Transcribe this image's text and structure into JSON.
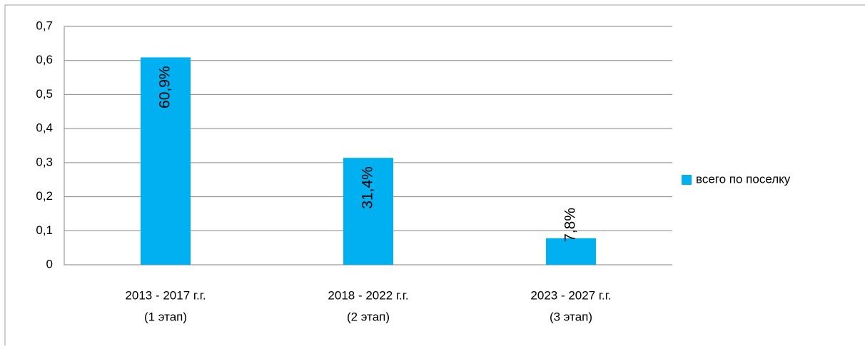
{
  "chart_data": {
    "type": "bar",
    "categories": [
      [
        "2013 - 2017 г.г.",
        "(1 этап)"
      ],
      [
        "2018 - 2022 г.г.",
        "(2 этап)"
      ],
      [
        "2023 - 2027 г.г.",
        "(3 этап)"
      ]
    ],
    "series": [
      {
        "name": "всего по поселку",
        "color": "#00b0f0",
        "values": [
          0.609,
          0.314,
          0.078
        ],
        "value_labels": [
          "60,9%",
          "31,4%",
          "7,8%"
        ]
      }
    ],
    "ylim": [
      0,
      0.7
    ],
    "yticks": [
      0,
      {
        "value": 0.1,
        "label": "0,1"
      },
      {
        "value": 0.2,
        "label": "0,2"
      },
      {
        "value": 0.3,
        "label": "0,3"
      },
      {
        "value": 0.4,
        "label": "0,4"
      },
      {
        "value": 0.5,
        "label": "0,5"
      },
      {
        "value": 0.6,
        "label": "0,6"
      },
      {
        "value": 0.7,
        "label": "0,7"
      }
    ],
    "grid": true,
    "legend": "right"
  }
}
